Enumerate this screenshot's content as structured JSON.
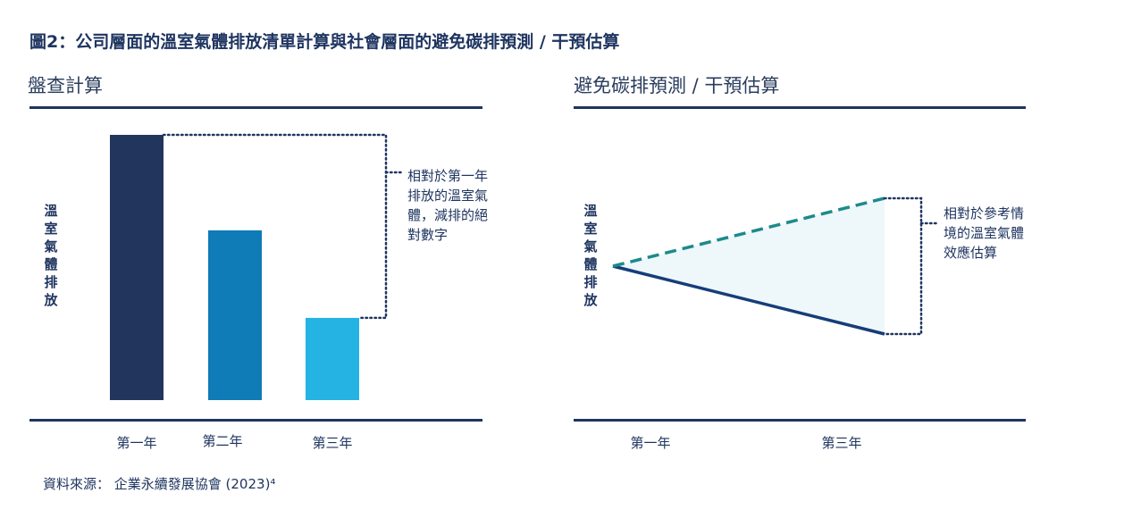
{
  "figure_title": "圖2：公司層面的溫室氣體排放清單計算與社會層面的避免碳排預測 / 干預估算",
  "left_panel": {
    "title": "盤查計算",
    "ylabel": "溫室氣體排放",
    "annotation": "相對於第一年\n排放的溫室氣\n體，減排的絕\n對數字"
  },
  "right_panel": {
    "title": "避免碳排預測 / 干預估算",
    "ylabel": "溫室氣體排放",
    "annotation": "相對於參考情\n境的溫室氣體\n效應估算"
  },
  "source": "資料來源： 企業永續發展協會 (2023)⁴",
  "chart_data": [
    {
      "type": "bar",
      "categories": [
        "第一年",
        "第二年",
        "第三年"
      ],
      "values": [
        100,
        64,
        31
      ],
      "colors": [
        "#22365d",
        "#0f7bb7",
        "#24b3e3"
      ],
      "ylabel": "溫室氣體排放"
    },
    {
      "type": "line",
      "x": [
        "第一年",
        "第三年"
      ],
      "series": [
        {
          "values": [
            50,
            100
          ],
          "color": "#1c8a8c",
          "dash": true
        },
        {
          "values": [
            50,
            0
          ],
          "color": "#163d7a",
          "dash": false
        }
      ],
      "ylabel": "溫室氣體排放"
    }
  ]
}
